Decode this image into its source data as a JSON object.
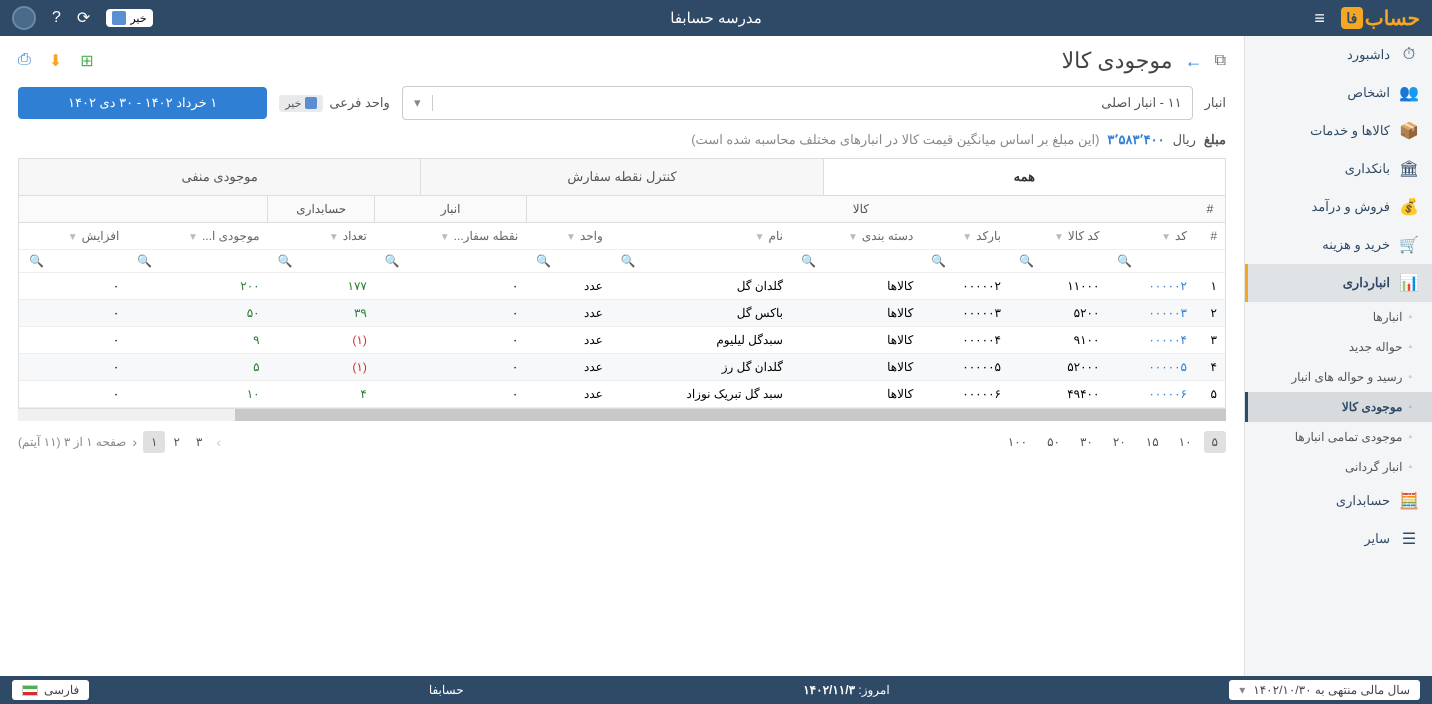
{
  "header": {
    "title": "مدرسه حسابفا",
    "logo_text": "حساب",
    "logo_suffix": "فا",
    "toggle_label": "خیر"
  },
  "sidebar": {
    "items": [
      {
        "label": "داشبورد",
        "icon": "⏱"
      },
      {
        "label": "اشخاص",
        "icon": "👥"
      },
      {
        "label": "کالاها و خدمات",
        "icon": "📦"
      },
      {
        "label": "بانکداری",
        "icon": "🏛"
      },
      {
        "label": "فروش و درآمد",
        "icon": "💰"
      },
      {
        "label": "خرید و هزینه",
        "icon": "🛒"
      },
      {
        "label": "انبارداری",
        "icon": "📊",
        "active": true,
        "subs": [
          {
            "label": "انبارها"
          },
          {
            "label": "حواله جدید"
          },
          {
            "label": "رسید و حواله های انبار"
          },
          {
            "label": "موجودی کالا",
            "active": true
          },
          {
            "label": "موجودی تمامی انبارها"
          },
          {
            "label": "انبار گردانی"
          }
        ]
      },
      {
        "label": "حسابداری",
        "icon": "🧮"
      },
      {
        "label": "سایر",
        "icon": "☰"
      }
    ]
  },
  "page": {
    "title": "موجودی کالا",
    "warehouse_label": "انبار",
    "warehouse_value": "۱۱ - انبار اصلی",
    "unit_label": "واحد فرعی",
    "unit_chip": "خیر",
    "date_range": "۱ خرداد ۱۴۰۲ - ۳۰ دی ۱۴۰۲",
    "amount_label": "مبلغ",
    "amount_currency": "ریال",
    "amount_value": "۳٬۵۸۳٬۴۰۰",
    "amount_note": "(این مبلغ بر اساس میانگین قیمت کالا در انبارهای مختلف محاسبه شده است)"
  },
  "tabs": [
    {
      "label": "همه",
      "active": true
    },
    {
      "label": "کنترل نقطه سفارش"
    },
    {
      "label": "موجودی منفی"
    }
  ],
  "table": {
    "group_headers": [
      {
        "label": "کالا",
        "span": 6
      },
      {
        "label": "انبار",
        "span": 1
      },
      {
        "label": "حسابداری",
        "span": 1
      },
      {
        "label": "",
        "span": 3
      }
    ],
    "columns": [
      "#",
      "کد",
      "کد کالا",
      "بارکد",
      "دسته بندی",
      "نام",
      "واحد",
      "نقطه سفار...",
      "تعداد",
      "موجودی ا...",
      "افزایش"
    ],
    "rows": [
      {
        "idx": "۱",
        "code": "۰۰۰۰۰۲",
        "item_code": "۱۱۰۰۰",
        "barcode": "۰۰۰۰۰۲",
        "category": "کالاها",
        "name": "گلدان گل",
        "unit": "عدد",
        "reorder": "۰",
        "qty": "۱۷۷",
        "qty_class": "pos",
        "inv": "۲۰۰",
        "inv_class": "pos",
        "inc": "۰"
      },
      {
        "idx": "۲",
        "code": "۰۰۰۰۰۳",
        "item_code": "۵۲۰۰",
        "barcode": "۰۰۰۰۰۳",
        "category": "کالاها",
        "name": "باکس گل",
        "unit": "عدد",
        "reorder": "۰",
        "qty": "۳۹",
        "qty_class": "pos",
        "inv": "۵۰",
        "inv_class": "pos",
        "inc": "۰"
      },
      {
        "idx": "۳",
        "code": "۰۰۰۰۰۴",
        "item_code": "۹۱۰۰",
        "barcode": "۰۰۰۰۰۴",
        "category": "کالاها",
        "name": "سبدگل لیلیوم",
        "unit": "عدد",
        "reorder": "۰",
        "qty": "(۱)",
        "qty_class": "neg",
        "inv": "۹",
        "inv_class": "pos",
        "inc": "۰"
      },
      {
        "idx": "۴",
        "code": "۰۰۰۰۰۵",
        "item_code": "۵۲۰۰۰",
        "barcode": "۰۰۰۰۰۵",
        "category": "کالاها",
        "name": "گلدان گل رز",
        "unit": "عدد",
        "reorder": "۰",
        "qty": "(۱)",
        "qty_class": "neg",
        "inv": "۵",
        "inv_class": "pos",
        "inc": "۰"
      },
      {
        "idx": "۵",
        "code": "۰۰۰۰۰۶",
        "item_code": "۴۹۴۰۰",
        "barcode": "۰۰۰۰۰۶",
        "category": "کالاها",
        "name": "سبد گل تبریک نوزاد",
        "unit": "عدد",
        "reorder": "۰",
        "qty": "۴",
        "qty_class": "pos",
        "inv": "۱۰",
        "inv_class": "pos",
        "inc": "۰"
      }
    ]
  },
  "pager": {
    "sizes": [
      "۵",
      "۱۰",
      "۱۵",
      "۲۰",
      "۳۰",
      "۵۰",
      "۱۰۰"
    ],
    "active_size": "۵",
    "pages": [
      "۱",
      "۲",
      "۳"
    ],
    "active_page": "۱",
    "info": "صفحه ۱ از ۳ (۱۱ آیتم)"
  },
  "footer": {
    "fiscal": "سال مالی منتهی به ۱۴۰۲/۱۰/۳۰",
    "today_label": "امروز:",
    "today_value": "۱۴۰۲/۱۱/۳",
    "brand": "حسابفا",
    "lang": "فارسی"
  }
}
